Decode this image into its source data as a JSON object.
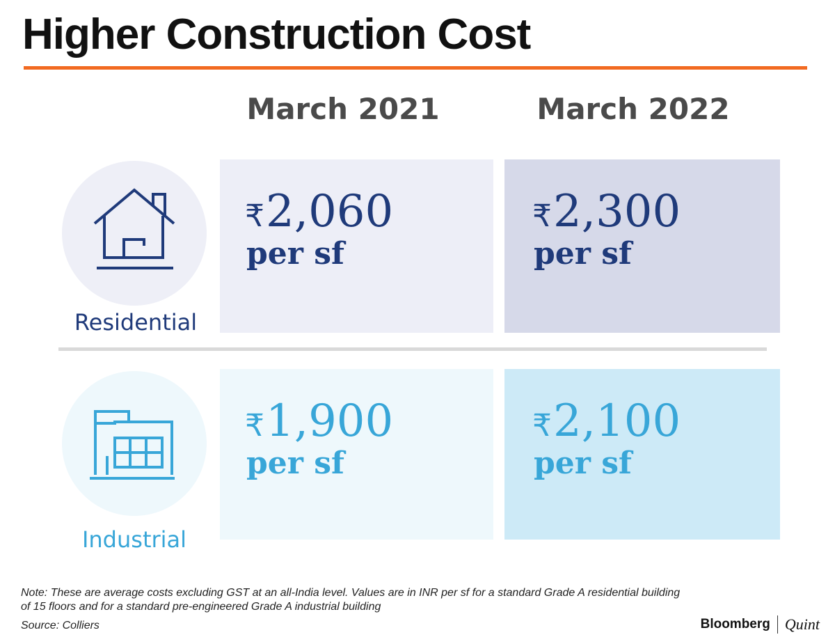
{
  "title": "Higher Construction Cost",
  "colors": {
    "accent_rule": "#f26a21",
    "residential_text": "#1f3a7a",
    "industrial_text": "#38a6d8",
    "res_2021_bg": "#edeef7",
    "res_2022_bg": "#d6d9e9",
    "ind_2021_bg": "#eef8fc",
    "ind_2022_bg": "#cdeaf7"
  },
  "icons": {
    "residential": "house-icon",
    "industrial": "factory-building-icon"
  },
  "chart_data": {
    "type": "table",
    "title": "Higher Construction Cost",
    "columns": [
      "March 2021",
      "March 2022"
    ],
    "rows": [
      {
        "label": "Residential",
        "values": [
          2060,
          2300
        ],
        "display": [
          "2,060",
          "2,300"
        ],
        "unit": "per sf"
      },
      {
        "label": "Industrial",
        "values": [
          1900,
          2100
        ],
        "display": [
          "1,900",
          "2,100"
        ],
        "unit": "per sf"
      }
    ],
    "currency_symbol": "₹"
  },
  "footer": {
    "note": "Note: These are average costs excluding GST at an all-India level. Values are in INR per sf for a standard Grade A residential building of 15 floors and for a standard pre-engineered Grade A industrial building",
    "source": "Source: Colliers",
    "brand_left": "Bloomberg",
    "brand_right": "Quint"
  }
}
